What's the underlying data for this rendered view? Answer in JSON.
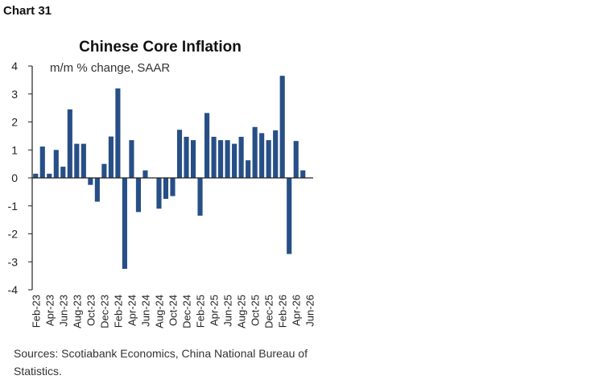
{
  "page": {
    "chart_label": "Chart 31",
    "source": "Sources: Scotiabank Economics, China National Bureau of Statistics."
  },
  "chart_data": {
    "type": "bar",
    "title": "Chinese Core Inflation",
    "subtitle": "m/m % change, SAAR",
    "xlabel": "",
    "ylabel": "",
    "ylim": [
      -4,
      4
    ],
    "yticks": [
      4,
      3,
      2,
      1,
      0,
      -1,
      -2,
      -3,
      -4
    ],
    "grid": false,
    "bar_color": "#274f87",
    "categories": [
      "Feb-23",
      "Mar-23",
      "Apr-23",
      "May-23",
      "Jun-23",
      "Jul-23",
      "Aug-23",
      "Sep-23",
      "Oct-23",
      "Nov-23",
      "Dec-23",
      "Jan-24",
      "Feb-24",
      "Mar-24",
      "Apr-24",
      "May-24",
      "Jun-24",
      "Jul-24",
      "Aug-24",
      "Sep-24",
      "Oct-24",
      "Nov-24",
      "Dec-24",
      "Jan-25",
      "Feb-25",
      "Mar-25",
      "Apr-25",
      "May-25",
      "Jun-25",
      "Jul-25",
      "Aug-25",
      "Sep-25",
      "Oct-25",
      "Nov-25",
      "Dec-25",
      "Jan-26",
      "Feb-26",
      "Mar-26",
      "Apr-26",
      "May-26",
      "Jun-26"
    ],
    "tick_labels": [
      "Feb-23",
      "Apr-23",
      "Jun-23",
      "Aug-23",
      "Oct-23",
      "Dec-23",
      "Feb-24",
      "Apr-24",
      "Jun-24",
      "Aug-24",
      "Oct-24",
      "Dec-24",
      "Feb-25",
      "Apr-25",
      "Jun-25",
      "Aug-25",
      "Oct-25",
      "Dec-25",
      "Feb-26",
      "Apr-26",
      "Jun-26"
    ],
    "values": [
      0.15,
      1.12,
      0.15,
      1.0,
      0.4,
      2.45,
      1.22,
      1.22,
      -0.25,
      -0.85,
      0.5,
      1.48,
      3.2,
      -3.25,
      1.35,
      -1.22,
      0.27,
      null,
      -1.1,
      -0.75,
      -0.65,
      1.72,
      1.47,
      1.35,
      -1.35,
      2.32,
      1.47,
      1.35,
      1.35,
      1.22,
      1.47,
      0.63,
      1.82,
      1.6,
      1.35,
      1.7,
      3.65,
      -2.72,
      1.32,
      0.27,
      null
    ]
  }
}
